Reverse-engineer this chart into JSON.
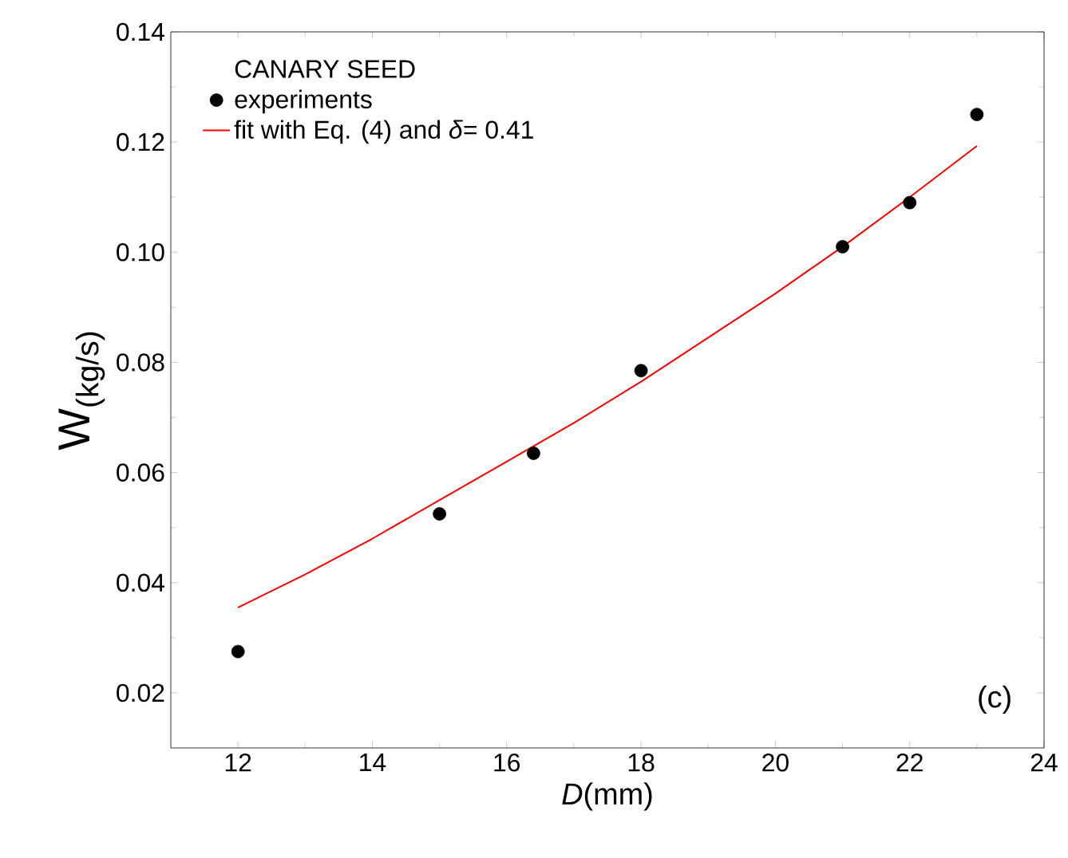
{
  "chart_data": {
    "type": "scatter",
    "xlabel": "*D*(mm)",
    "ylabel": "W$_{(kg/s)}$",
    "legend_title": "CANARY SEED",
    "annotations": [
      "(c)"
    ],
    "xlim": [
      11,
      24
    ],
    "ylim": [
      0.01,
      0.14
    ],
    "xticks": [
      12,
      14,
      16,
      18,
      20,
      22,
      24
    ],
    "yticks": [
      {
        "value": 0.02,
        "label": "0.02"
      },
      {
        "value": 0.04,
        "label": "0.04"
      },
      {
        "value": 0.06,
        "label": "0.06"
      },
      {
        "value": 0.08,
        "label": "0.08"
      },
      {
        "value": 0.1,
        "label": "0.10"
      },
      {
        "value": 0.12,
        "label": "0.12"
      },
      {
        "value": 0.14,
        "label": "0.14"
      }
    ],
    "legend": "top left",
    "grid": false,
    "series": [
      {
        "name": "experiments",
        "color": "#000000",
        "marker": "circle",
        "x": [
          12,
          15,
          16.4,
          18,
          21,
          22,
          23
        ],
        "values": [
          0.0275,
          0.0525,
          0.0635,
          0.0785,
          0.101,
          0.109,
          0.125
        ]
      },
      {
        "name": "fit with Eq. (4) and *δ*= 0.41",
        "type": "line",
        "color": "#ff0000",
        "marker": "none",
        "line_style": "solid",
        "x": [
          12,
          13,
          14,
          15,
          16,
          17,
          18,
          19,
          20,
          21,
          22,
          23
        ],
        "values": [
          0.0355,
          0.0415,
          0.048,
          0.055,
          0.062,
          0.069,
          0.0765,
          0.0845,
          0.0925,
          0.101,
          0.11,
          0.1193
        ]
      }
    ]
  }
}
